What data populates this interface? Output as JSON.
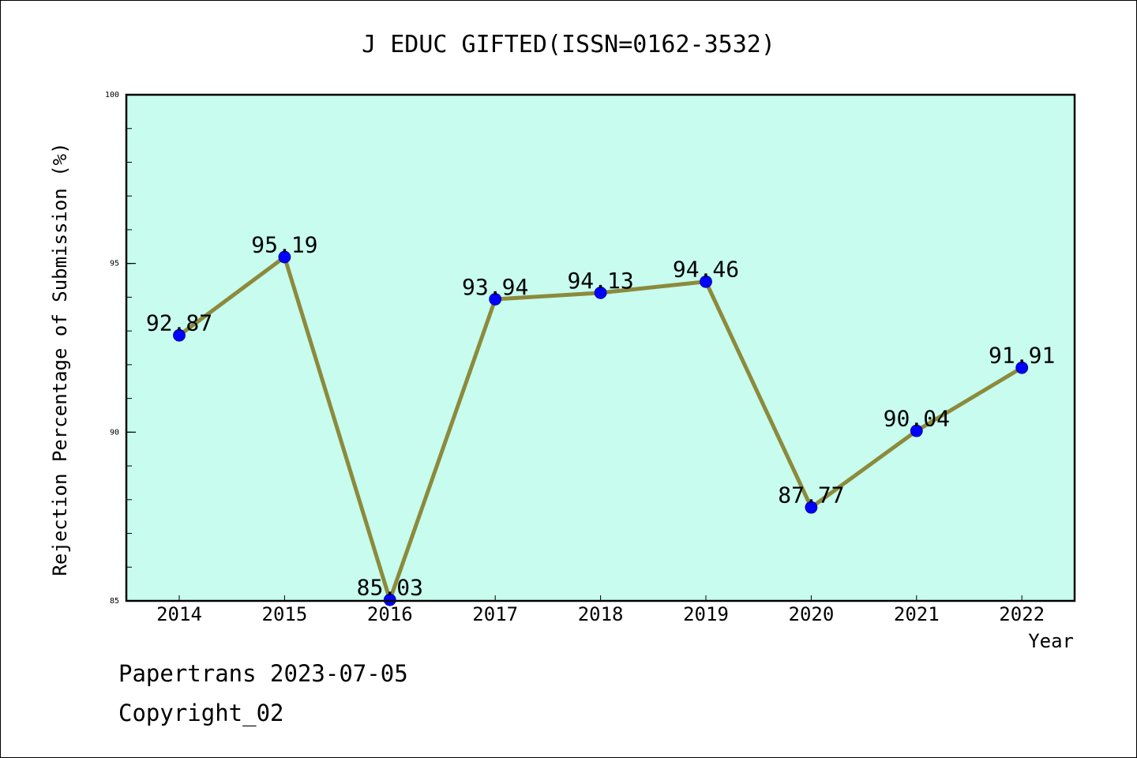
{
  "chart_data": {
    "type": "line",
    "title": "J EDUC GIFTED(ISSN=0162-3532)",
    "xlabel": "Year",
    "ylabel": "Rejection Percentage of Submission (%)",
    "categories": [
      "2014",
      "2015",
      "2016",
      "2017",
      "2018",
      "2019",
      "2020",
      "2021",
      "2022"
    ],
    "series": [
      {
        "values": [
          92.87,
          95.19,
          85.03,
          93.94,
          94.13,
          94.46,
          87.77,
          90.04,
          91.91
        ],
        "labels": [
          "92.87",
          "95.19",
          "85.03",
          "93.94",
          "94.13",
          "94.46",
          "87.77",
          "90.04",
          "91.91"
        ]
      }
    ],
    "ylim": [
      85,
      100
    ],
    "yticks": [
      {
        "value": 85,
        "label": "85"
      },
      {
        "value": 90,
        "label": "90"
      },
      {
        "value": 95,
        "label": "95"
      },
      {
        "value": 100,
        "label": "100"
      }
    ],
    "y_minor_step": 1,
    "grid": false,
    "colors": {
      "plot_background": "#c7fcee",
      "line": "#8c8a3c",
      "marker": "#0000ff",
      "axis": "#000000"
    }
  },
  "footer": {
    "source": "Papertrans 2023-07-05",
    "copyright": "Copyright_02"
  }
}
